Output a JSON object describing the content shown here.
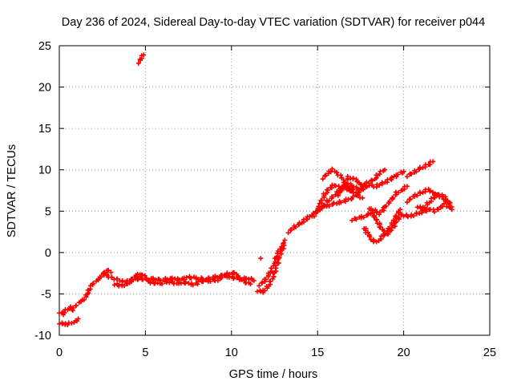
{
  "chart_data": {
    "type": "scatter",
    "title": "Day 236 of 2024, Sidereal Day-to-day VTEC variation (SDTVAR) for receiver p044",
    "xlabel": "GPS time / hours",
    "ylabel": "SDTVAR / TECUs",
    "xlim": [
      0,
      25
    ],
    "ylim": [
      -10,
      25
    ],
    "xticks": [
      0,
      5,
      10,
      15,
      20,
      25
    ],
    "yticks": [
      -10,
      -5,
      0,
      5,
      10,
      15,
      20,
      25
    ],
    "grid": true,
    "marker": "+",
    "series": [
      {
        "name": "early",
        "color": "#ff0000",
        "points": [
          [
            4.6,
            23.0
          ],
          [
            4.75,
            23.5
          ],
          [
            4.9,
            23.9
          ]
        ]
      },
      {
        "name": "start_low",
        "color": "#ff0000",
        "points": [
          [
            0.0,
            -8.5
          ],
          [
            0.3,
            -8.7
          ],
          [
            0.6,
            -8.6
          ],
          [
            0.9,
            -8.3
          ],
          [
            1.1,
            -8.0
          ]
        ]
      },
      {
        "name": "start_rise",
        "color": "#ff0000",
        "points": [
          [
            0.0,
            -7.2
          ],
          [
            0.2,
            -7.5
          ],
          [
            0.4,
            -7.0
          ],
          [
            0.6,
            -6.6
          ],
          [
            0.8,
            -6.9
          ],
          [
            1.0,
            -6.3
          ],
          [
            1.2,
            -6.0
          ],
          [
            1.4,
            -5.8
          ],
          [
            1.6,
            -5.0
          ],
          [
            1.8,
            -4.3
          ],
          [
            2.0,
            -3.7
          ],
          [
            2.2,
            -3.4
          ],
          [
            2.4,
            -3.0
          ],
          [
            2.6,
            -2.3
          ],
          [
            2.8,
            -2.1
          ],
          [
            3.0,
            -2.4
          ]
        ]
      },
      {
        "name": "midday_a",
        "color": "#ff0000",
        "points": [
          [
            2.6,
            -2.6
          ],
          [
            3.0,
            -3.0
          ],
          [
            3.4,
            -3.3
          ],
          [
            3.8,
            -3.6
          ],
          [
            4.2,
            -3.4
          ],
          [
            4.6,
            -3.1
          ],
          [
            5.0,
            -3.3
          ],
          [
            5.5,
            -3.2
          ],
          [
            6.0,
            -3.3
          ],
          [
            6.5,
            -3.1
          ],
          [
            7.0,
            -3.3
          ],
          [
            7.5,
            -3.0
          ],
          [
            8.0,
            -3.1
          ],
          [
            8.5,
            -3.2
          ],
          [
            9.0,
            -3.0
          ],
          [
            9.5,
            -2.8
          ],
          [
            10.0,
            -3.0
          ],
          [
            10.5,
            -3.2
          ],
          [
            11.0,
            -3.1
          ],
          [
            11.3,
            -3.4
          ]
        ]
      },
      {
        "name": "midday_b",
        "color": "#ff0000",
        "points": [
          [
            3.2,
            -3.8
          ],
          [
            3.6,
            -4.0
          ],
          [
            4.0,
            -3.8
          ],
          [
            4.4,
            -2.8
          ],
          [
            4.8,
            -2.6
          ],
          [
            5.3,
            -3.6
          ],
          [
            5.8,
            -3.8
          ],
          [
            6.3,
            -3.5
          ],
          [
            6.8,
            -3.7
          ],
          [
            7.3,
            -3.6
          ],
          [
            7.8,
            -3.9
          ],
          [
            8.2,
            -3.5
          ],
          [
            8.7,
            -3.4
          ],
          [
            9.2,
            -3.3
          ],
          [
            9.7,
            -2.6
          ],
          [
            10.2,
            -2.5
          ],
          [
            10.7,
            -3.5
          ],
          [
            11.1,
            -3.8
          ]
        ]
      },
      {
        "name": "dip_rise",
        "color": "#ff0000",
        "points": [
          [
            11.5,
            -4.6
          ],
          [
            11.8,
            -4.8
          ],
          [
            12.1,
            -4.2
          ],
          [
            12.4,
            -3.0
          ],
          [
            12.6,
            -1.8
          ],
          [
            12.8,
            -0.5
          ],
          [
            13.0,
            0.8
          ],
          [
            13.1,
            1.5
          ]
        ]
      },
      {
        "name": "dip_rise_b",
        "color": "#ff0000",
        "points": [
          [
            11.6,
            -3.9
          ],
          [
            11.9,
            -3.5
          ],
          [
            12.2,
            -2.6
          ],
          [
            12.5,
            -1.2
          ],
          [
            12.7,
            0.0
          ],
          [
            12.9,
            0.7
          ]
        ]
      },
      {
        "name": "outlier",
        "color": "#ff0000",
        "points": [
          [
            11.7,
            -0.7
          ]
        ]
      },
      {
        "name": "evening_a",
        "color": "#ff0000",
        "points": [
          [
            13.3,
            2.5
          ],
          [
            13.6,
            3.0
          ],
          [
            14.0,
            3.5
          ],
          [
            14.3,
            4.0
          ],
          [
            14.7,
            4.6
          ],
          [
            15.0,
            5.0
          ],
          [
            15.3,
            5.5
          ],
          [
            15.6,
            6.2
          ],
          [
            16.0,
            7.0
          ],
          [
            16.4,
            7.6
          ],
          [
            16.8,
            8.3
          ],
          [
            17.2,
            7.8
          ],
          [
            17.6,
            7.6
          ],
          [
            18.0,
            8.2
          ],
          [
            18.4,
            8.0
          ],
          [
            18.8,
            8.4
          ],
          [
            19.2,
            8.8
          ],
          [
            19.6,
            9.4
          ],
          [
            20.0,
            9.8
          ]
        ]
      },
      {
        "name": "evening_b",
        "color": "#ff0000",
        "points": [
          [
            14.8,
            4.5
          ],
          [
            15.2,
            6.0
          ],
          [
            15.4,
            7.0
          ],
          [
            15.7,
            7.8
          ],
          [
            16.0,
            8.2
          ],
          [
            16.3,
            7.8
          ],
          [
            16.6,
            8.0
          ],
          [
            16.9,
            7.4
          ]
        ]
      },
      {
        "name": "evening_c",
        "color": "#ff0000",
        "points": [
          [
            15.3,
            9.0
          ],
          [
            15.6,
            9.6
          ],
          [
            15.9,
            10.0
          ],
          [
            16.3,
            9.3
          ],
          [
            16.6,
            8.6
          ],
          [
            16.9,
            7.6
          ],
          [
            17.3,
            7.0
          ],
          [
            17.6,
            6.6
          ]
        ]
      },
      {
        "name": "evening_d",
        "color": "#ff0000",
        "points": [
          [
            16.2,
            7.0
          ],
          [
            16.5,
            8.2
          ],
          [
            16.8,
            9.1
          ],
          [
            17.2,
            8.8
          ],
          [
            17.5,
            8.3
          ],
          [
            17.8,
            8.0
          ]
        ]
      },
      {
        "name": "evening_e",
        "color": "#ff0000",
        "points": [
          [
            15.0,
            5.2
          ],
          [
            15.5,
            5.6
          ],
          [
            16.0,
            5.9
          ],
          [
            16.5,
            6.2
          ],
          [
            17.0,
            6.6
          ],
          [
            17.3,
            7.0
          ],
          [
            17.6,
            8.0
          ],
          [
            17.9,
            8.4
          ],
          [
            18.3,
            8.9
          ],
          [
            18.6,
            9.6
          ],
          [
            18.9,
            10.0
          ]
        ]
      },
      {
        "name": "late_v",
        "color": "#ff0000",
        "points": [
          [
            17.0,
            4.0
          ],
          [
            17.5,
            4.2
          ],
          [
            18.0,
            4.6
          ],
          [
            18.3,
            5.1
          ],
          [
            18.6,
            4.7
          ],
          [
            19.0,
            5.7
          ],
          [
            19.3,
            6.4
          ],
          [
            19.6,
            7.2
          ],
          [
            19.9,
            7.6
          ],
          [
            20.2,
            8.0
          ]
        ]
      },
      {
        "name": "late_dip",
        "color": "#ff0000",
        "points": [
          [
            17.7,
            3.0
          ],
          [
            18.0,
            2.0
          ],
          [
            18.3,
            1.2
          ],
          [
            18.6,
            1.6
          ],
          [
            18.9,
            2.2
          ],
          [
            19.2,
            3.0
          ],
          [
            19.5,
            4.2
          ],
          [
            19.8,
            5.2
          ]
        ]
      },
      {
        "name": "late_dip_b",
        "color": "#ff0000",
        "points": [
          [
            18.0,
            5.4
          ],
          [
            18.4,
            4.0
          ],
          [
            18.7,
            3.0
          ],
          [
            19.0,
            2.2
          ],
          [
            19.3,
            2.8
          ],
          [
            19.6,
            3.8
          ],
          [
            19.9,
            4.6
          ]
        ]
      },
      {
        "name": "late_rise",
        "color": "#ff0000",
        "points": [
          [
            20.2,
            9.3
          ],
          [
            20.6,
            9.7
          ],
          [
            21.0,
            10.2
          ],
          [
            21.4,
            10.6
          ],
          [
            21.7,
            11.0
          ]
        ]
      },
      {
        "name": "late_band_a",
        "color": "#ff0000",
        "points": [
          [
            20.0,
            4.5
          ],
          [
            20.4,
            4.4
          ],
          [
            20.8,
            4.7
          ],
          [
            21.2,
            5.0
          ],
          [
            21.5,
            5.3
          ],
          [
            21.8,
            5.0
          ],
          [
            22.1,
            5.4
          ],
          [
            22.4,
            5.8
          ],
          [
            22.7,
            5.4
          ]
        ]
      },
      {
        "name": "late_band_b",
        "color": "#ff0000",
        "points": [
          [
            20.2,
            6.2
          ],
          [
            20.6,
            6.8
          ],
          [
            21.0,
            7.2
          ],
          [
            21.4,
            7.6
          ],
          [
            21.8,
            7.2
          ],
          [
            22.1,
            6.8
          ],
          [
            22.4,
            6.4
          ],
          [
            22.7,
            6.0
          ]
        ]
      },
      {
        "name": "late_band_c",
        "color": "#ff0000",
        "points": [
          [
            20.8,
            5.6
          ],
          [
            21.1,
            5.2
          ],
          [
            21.4,
            5.9
          ],
          [
            21.7,
            6.6
          ],
          [
            22.0,
            7.1
          ],
          [
            22.3,
            6.8
          ],
          [
            22.6,
            6.0
          ],
          [
            22.8,
            5.2
          ]
        ]
      }
    ]
  }
}
